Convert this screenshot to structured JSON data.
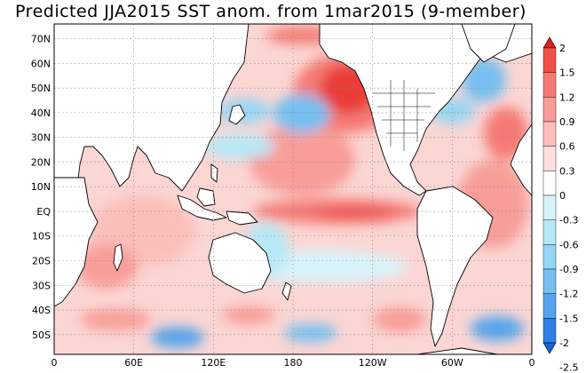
{
  "title": "Predicted JJA2015 SST anom. from 1mar2015 (9-member)",
  "map": {
    "projection": "cylindrical equidistant",
    "lon_range": [
      0,
      360
    ],
    "lat_range": [
      -58,
      76
    ],
    "lat_ticks": [
      "70N",
      "60N",
      "50N",
      "40N",
      "30N",
      "20N",
      "10N",
      "EQ",
      "10S",
      "20S",
      "30S",
      "40S",
      "50S"
    ],
    "lon_ticks": [
      "0",
      "60E",
      "120E",
      "180",
      "120W",
      "60W",
      "0"
    ],
    "gridlines": "dotted",
    "overlay": "coastlines and US state / national boundaries"
  },
  "colorbar": {
    "orientation": "vertical",
    "ticks": [
      "2",
      "1.5",
      "1.2",
      "0.9",
      "0.6",
      "0.3",
      "0",
      "-0.3",
      "-0.6",
      "-0.9",
      "-1.2",
      "-1.5",
      "-2",
      "-2.5"
    ],
    "colors": [
      "#e41a1c",
      "#f0504a",
      "#f57a74",
      "#f89d98",
      "#fbbfbb",
      "#fde0dd",
      "#ffffff",
      "#d8f4fb",
      "#b6e8f6",
      "#96d6f3",
      "#76bff0",
      "#55a4ec",
      "#2f7fe6",
      "#1560e0"
    ],
    "extends": "both"
  },
  "anomalies": [
    {
      "region": "NE Pacific / Gulf of Alaska",
      "sign": "warm",
      "level": "1.5 to 2"
    },
    {
      "region": "Equatorial central-east Pacific",
      "sign": "warm",
      "level": "0.9 to 1.5"
    },
    {
      "region": "Central North Pacific",
      "sign": "cool",
      "level": "-0.6 to -1.2"
    },
    {
      "region": "Western Pacific off Japan",
      "sign": "cool",
      "level": "-0.3 to -0.9"
    },
    {
      "region": "Labrador Sea / North Atlantic",
      "sign": "cool",
      "level": "-0.9 to -1.5"
    },
    {
      "region": "Southern Ocean",
      "sign": "mixed",
      "level": "-1.5 to 0.9"
    },
    {
      "region": "Indian Ocean",
      "sign": "warm",
      "level": "0.3 to 0.6"
    },
    {
      "region": "South Pacific",
      "sign": "cool",
      "level": "-0.3 to -0.6"
    }
  ]
}
